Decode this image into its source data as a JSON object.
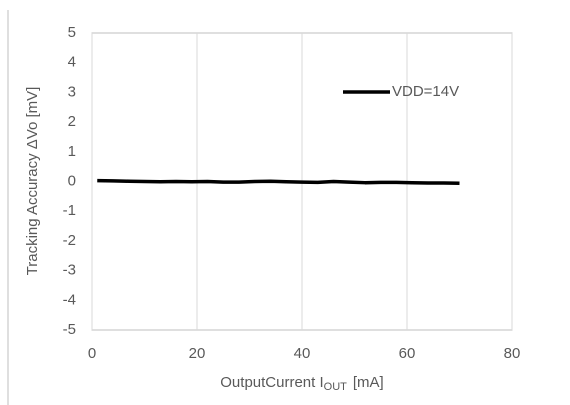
{
  "chart_data": {
    "type": "line",
    "xlabel": {
      "main": "OutputCurrent I",
      "sub": "OUT",
      "unit": "[mA]"
    },
    "ylabel": "Tracking Accuracy ΔVo [mV]",
    "x": [
      1,
      4,
      7,
      10,
      13,
      16,
      19,
      22,
      25,
      28,
      31,
      34,
      37,
      40,
      43,
      46,
      49,
      52,
      55,
      58,
      61,
      64,
      67,
      70
    ],
    "series": [
      {
        "name": "VDD=14V",
        "color": "#000000",
        "values": [
          0.03,
          0.02,
          0.01,
          0.0,
          -0.01,
          0.0,
          -0.01,
          0.0,
          -0.02,
          -0.02,
          0.0,
          0.01,
          -0.01,
          -0.02,
          -0.03,
          0.0,
          -0.02,
          -0.04,
          -0.03,
          -0.03,
          -0.04,
          -0.05,
          -0.05,
          -0.06
        ]
      }
    ],
    "xlim": [
      0,
      80
    ],
    "xticks": [
      0,
      20,
      40,
      60,
      80
    ],
    "ylim": [
      -5,
      5
    ],
    "yticks": [
      -5,
      -4,
      -3,
      -2,
      -1,
      0,
      1,
      2,
      3,
      4,
      5
    ],
    "grid": "x",
    "legend": "upper right"
  }
}
